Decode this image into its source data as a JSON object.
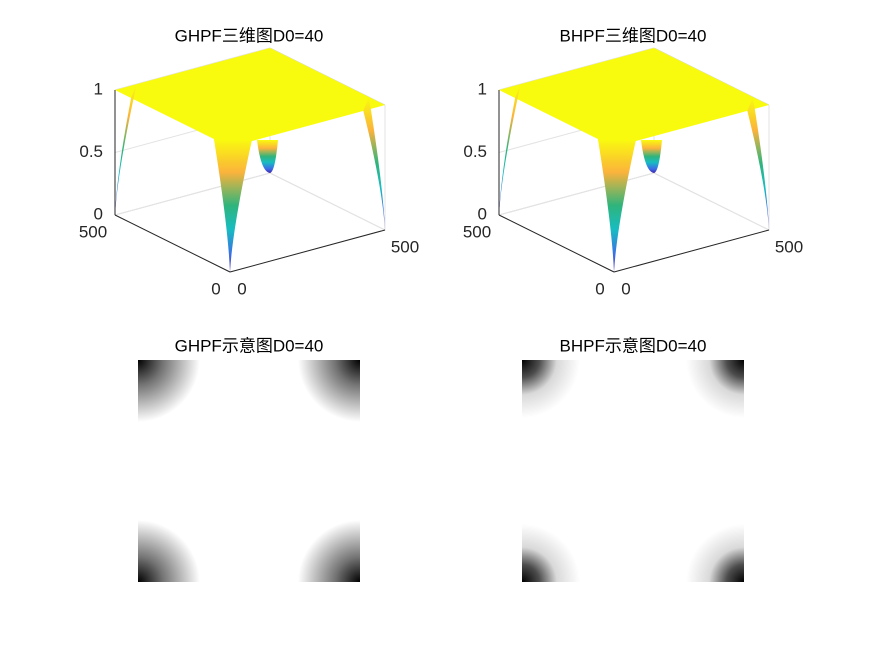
{
  "chart_data": [
    {
      "type": "surface",
      "title": "GHPF三维图D0=40",
      "xlim": [
        0,
        500
      ],
      "xticks": [
        0,
        500
      ],
      "ylim": [
        0,
        500
      ],
      "yticks": [
        0,
        500
      ],
      "zlim": [
        0,
        1
      ],
      "zticks": [
        0,
        0.5,
        1
      ]
    },
    {
      "type": "surface",
      "title": "BHPF三维图D0=40",
      "xlim": [
        0,
        500
      ],
      "xticks": [
        0,
        500
      ],
      "ylim": [
        0,
        500
      ],
      "yticks": [
        0,
        500
      ],
      "zlim": [
        0,
        1
      ],
      "zticks": [
        0,
        0.5,
        1
      ]
    },
    {
      "type": "image",
      "title": "GHPF示意图D0=40"
    },
    {
      "type": "image",
      "title": "BHPF示意图D0=40"
    }
  ]
}
